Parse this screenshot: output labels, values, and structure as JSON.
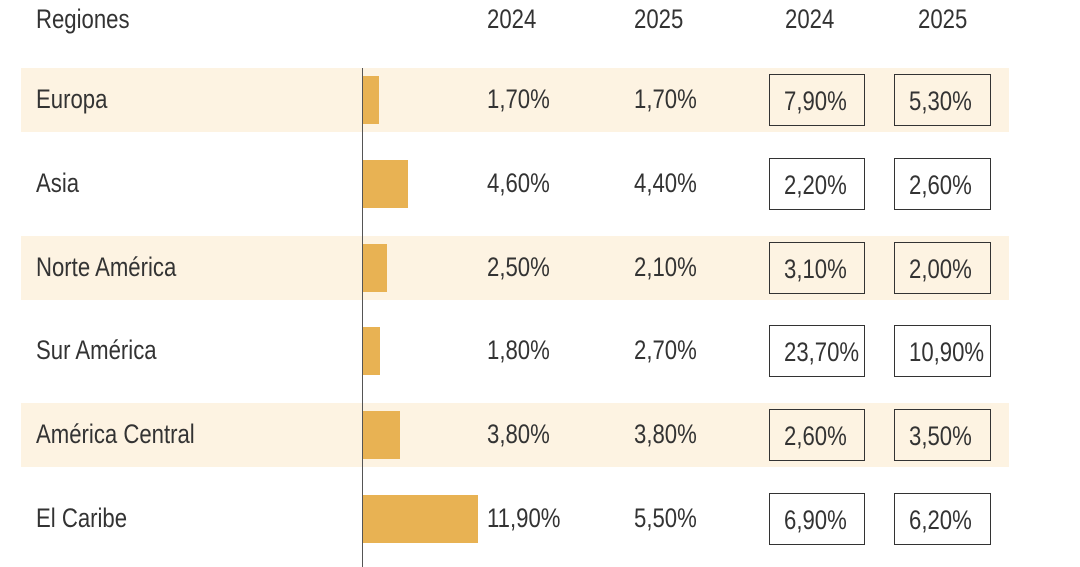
{
  "colors": {
    "row_stripe": "#fdf3e2",
    "bar": "#e8b253"
  },
  "headers": {
    "region": "Regiones",
    "col1": "2024",
    "col2": "2025",
    "col3": "2024",
    "col4": "2025"
  },
  "chart_data": {
    "type": "table",
    "columns": [
      "Regiones",
      "2024",
      "2025",
      "2024",
      "2025"
    ],
    "bar_max": 11.9,
    "rows": [
      {
        "region": "Europa",
        "bar_value": 1.7,
        "v2024": "1,70%",
        "v2025": "1,70%",
        "b2024": "7,90%",
        "b2025": "5,30%"
      },
      {
        "region": "Asia",
        "bar_value": 4.6,
        "v2024": "4,60%",
        "v2025": "4,40%",
        "b2024": "2,20%",
        "b2025": "2,60%"
      },
      {
        "region": "Norte América",
        "bar_value": 2.5,
        "v2024": "2,50%",
        "v2025": "2,10%",
        "b2024": "3,10%",
        "b2025": "2,00%"
      },
      {
        "region": "Sur América",
        "bar_value": 1.8,
        "v2024": "1,80%",
        "v2025": "2,70%",
        "b2024": "23,70%",
        "b2025": "10,90%"
      },
      {
        "region": "América Central",
        "bar_value": 3.8,
        "v2024": "3,80%",
        "v2025": "3,80%",
        "b2024": "2,60%",
        "b2025": "3,50%"
      },
      {
        "region": "El Caribe",
        "bar_value": 11.9,
        "v2024": "11,90%",
        "v2025": "5,50%",
        "b2024": "6,90%",
        "b2025": "6,20%"
      }
    ]
  }
}
